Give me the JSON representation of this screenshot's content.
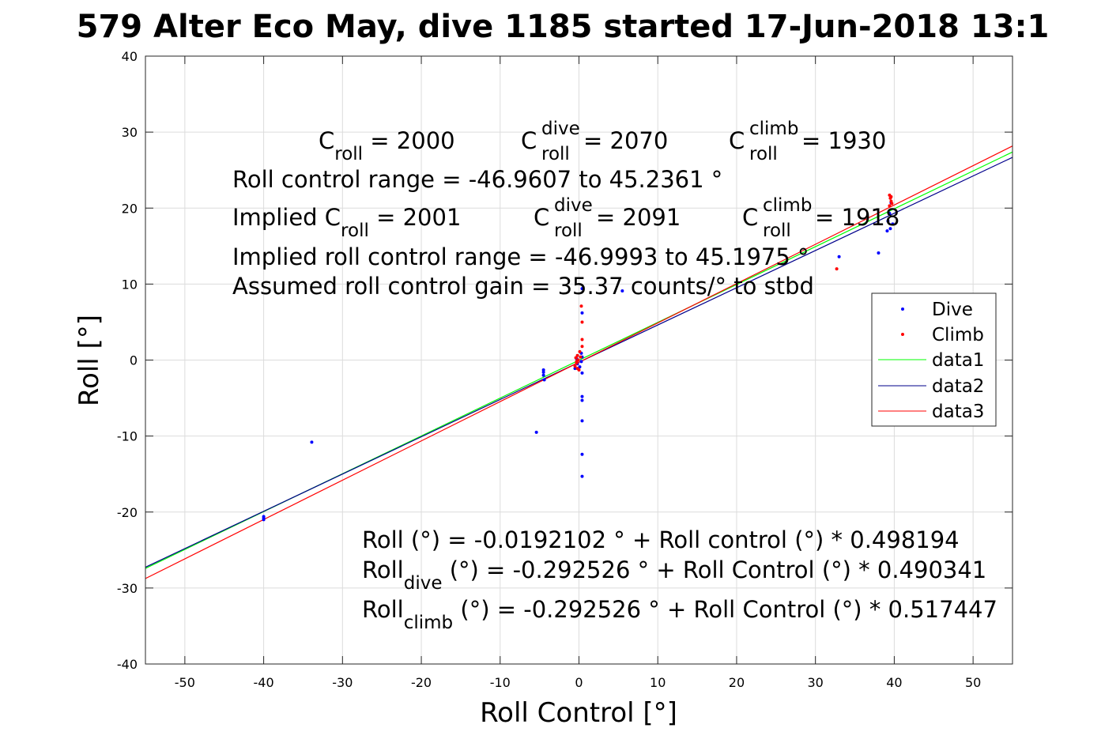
{
  "chart_data": {
    "type": "scatter",
    "title": "579 Alter Eco May, dive 1185 started 17-Jun-2018 13:1",
    "xlabel": "Roll Control [°]",
    "ylabel": "Roll [°]",
    "xlim": [
      -55,
      55
    ],
    "ylim": [
      -40,
      40
    ],
    "xticks": [
      -50,
      -40,
      -30,
      -20,
      -10,
      0,
      10,
      20,
      30,
      40,
      50
    ],
    "yticks": [
      -40,
      -30,
      -20,
      -10,
      0,
      10,
      20,
      30,
      40
    ],
    "grid": true,
    "legend_position": "right",
    "series": [
      {
        "name": "Dive",
        "kind": "points",
        "color": "#0000ff",
        "points": [
          [
            -40,
            -20.6
          ],
          [
            -40,
            -21.0
          ],
          [
            -40,
            -20.8
          ],
          [
            -33.9,
            -10.8
          ],
          [
            -5.4,
            -9.5
          ],
          [
            -4.5,
            -1.3
          ],
          [
            -4.5,
            -1.6
          ],
          [
            -4.5,
            -2.0
          ],
          [
            -4.4,
            -2.6
          ],
          [
            0.4,
            9.4
          ],
          [
            0.4,
            6.2
          ],
          [
            0.3,
            0.9
          ],
          [
            0.4,
            0.4
          ],
          [
            0.3,
            -0.2
          ],
          [
            0.4,
            -1.7
          ],
          [
            0.4,
            -4.8
          ],
          [
            0.4,
            -5.3
          ],
          [
            0.4,
            -8.0
          ],
          [
            0.4,
            -12.4
          ],
          [
            0.4,
            -15.3
          ],
          [
            -0.3,
            0.2
          ],
          [
            -0.2,
            -0.5
          ],
          [
            0.1,
            -0.9
          ],
          [
            -0.5,
            -1.1
          ],
          [
            5.5,
            9.1
          ],
          [
            33.0,
            13.6
          ],
          [
            38.0,
            14.1
          ],
          [
            39.1,
            17.0
          ],
          [
            39.2,
            18.3
          ],
          [
            39.4,
            19.3
          ],
          [
            39.6,
            20.7
          ],
          [
            39.8,
            17.9
          ],
          [
            39.5,
            17.3
          ]
        ]
      },
      {
        "name": "Climb",
        "kind": "points",
        "color": "#ff0000",
        "points": [
          [
            0.3,
            7.1
          ],
          [
            0.4,
            5.0
          ],
          [
            0.4,
            2.7
          ],
          [
            0.4,
            1.8
          ],
          [
            0.1,
            1.1
          ],
          [
            -0.2,
            0.6
          ],
          [
            -0.4,
            0.3
          ],
          [
            -0.1,
            0.0
          ],
          [
            -0.3,
            -0.4
          ],
          [
            -0.5,
            -0.8
          ],
          [
            -0.2,
            -1.1
          ],
          [
            0.0,
            -1.3
          ],
          [
            -0.3,
            -0.2
          ],
          [
            0.2,
            0.4
          ],
          [
            32.7,
            12.0
          ],
          [
            39.4,
            21.7
          ],
          [
            39.5,
            21.3
          ],
          [
            39.6,
            20.9
          ],
          [
            39.7,
            20.6
          ],
          [
            39.4,
            20.3
          ],
          [
            39.6,
            21.5
          ]
        ]
      },
      {
        "name": "data1",
        "kind": "line",
        "color": "#00ff00",
        "x": [
          -55,
          55
        ],
        "y": [
          -27.42,
          27.38
        ]
      },
      {
        "name": "data2",
        "kind": "line",
        "color": "#00008b",
        "x": [
          -55,
          55
        ],
        "y": [
          -27.26,
          26.68
        ]
      },
      {
        "name": "data3",
        "kind": "line",
        "color": "#ff0000",
        "x": [
          -55,
          55
        ],
        "y": [
          -28.75,
          28.17
        ]
      }
    ],
    "annotations": {
      "line1": {
        "a": "C",
        "a_sub": "roll",
        "a_val": " = 2000",
        "b": "C",
        "b_sup": "dive",
        "b_sub": "roll",
        "b_val": " = 2070",
        "c": "C",
        "c_sup": "climb",
        "c_sub": "roll",
        "c_val": " = 1930"
      },
      "range": "Roll control range = -46.9607 to 45.2361 °",
      "line3": {
        "a": "Implied C",
        "a_sub": "roll",
        "a_val": " = 2001",
        "b": "C",
        "b_sup": "dive",
        "b_sub": "roll",
        "b_val": " = 2091",
        "c": "C",
        "c_sup": "climb",
        "c_sub": "roll",
        "c_val": " = 1918"
      },
      "implied_range": "Implied roll control range = -46.9993 to 45.1975 °",
      "gain": "Assumed roll control gain = 35.37 counts/° to stbd",
      "fit_all": "Roll (°) = -0.0192102 ° + Roll control (°) * 0.498194",
      "fit_dive": {
        "a": "Roll",
        "sub": "dive",
        "rest": " (°) = -0.292526 ° + Roll Control (°) * 0.490341"
      },
      "fit_climb": {
        "a": "Roll",
        "sub": "climb",
        "rest": " (°) = -0.292526 ° + Roll Control (°) * 0.517447"
      }
    }
  }
}
